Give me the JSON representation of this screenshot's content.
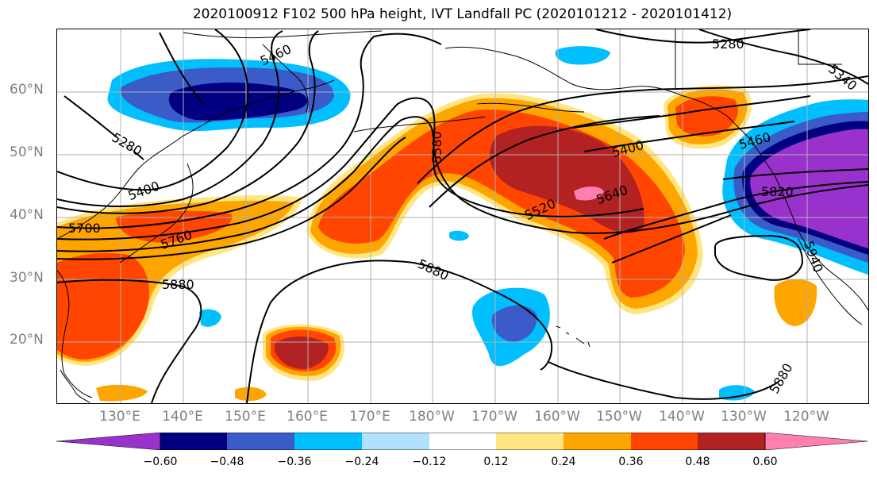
{
  "title": "2020100912 F102 500 hPa height, IVT Landfall PC (2020101212 - 2020101412)",
  "colors": {
    "neg060": "#9932cc",
    "neg048": "#000080",
    "neg036": "#3a5bc8",
    "neg024": "#00bfff",
    "neg012": "#b0e2ff",
    "zero": "#ffffff",
    "pos012": "#ffe680",
    "pos024": "#ffa500",
    "pos036": "#ff4500",
    "pos048": "#b22222",
    "pos060": "#ff80b0",
    "contour": "#000000",
    "grid": "#b0b0b0",
    "coast": "#000000",
    "axis_label": "#808080"
  },
  "lat_labels": [
    "60°N",
    "50°N",
    "40°N",
    "30°N",
    "20°N"
  ],
  "lon_labels": [
    "130°E",
    "140°E",
    "150°E",
    "160°E",
    "170°E",
    "180°W",
    "170°W",
    "160°W",
    "150°W",
    "140°W",
    "130°W",
    "120°W"
  ],
  "contour_labels": [
    "5280",
    "5400",
    "5460",
    "5520",
    "5580",
    "5640",
    "5700",
    "5760",
    "5820",
    "5880",
    "5940",
    "5340"
  ],
  "colorbar": {
    "ticks": [
      "−0.60",
      "−0.48",
      "−0.36",
      "−0.24",
      "−0.12",
      "0.12",
      "0.24",
      "0.36",
      "0.48",
      "0.60"
    ]
  }
}
